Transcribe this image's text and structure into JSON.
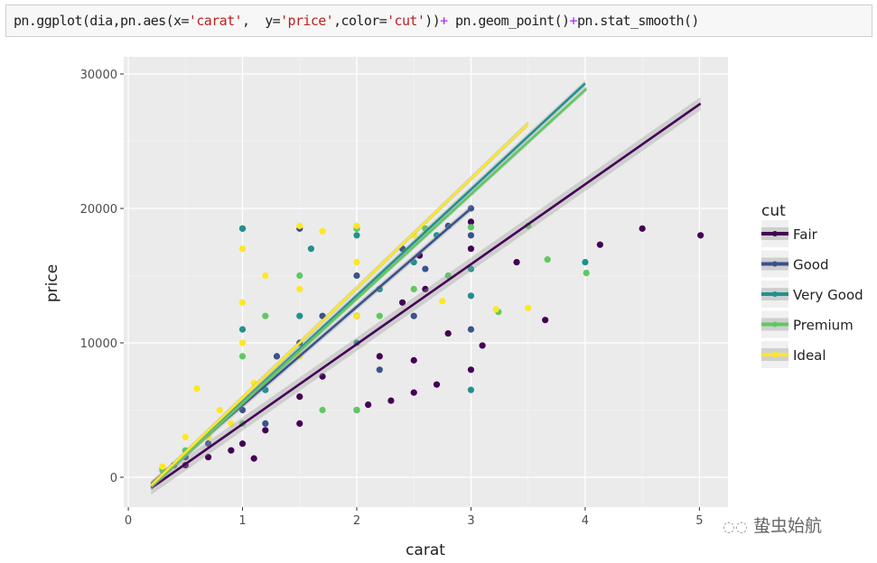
{
  "code_cell": {
    "parts": [
      "pn.ggplot(dia,pn.aes(x=",
      "'carat'",
      ",  y=",
      "'price'",
      ",color=",
      "'cut'",
      "))",
      "+",
      " pn.geom_point()",
      "+",
      "pn.stat_smooth()"
    ]
  },
  "watermark": "蛰虫始航",
  "colors": {
    "Fair": "#440154",
    "Good": "#3b528b",
    "Very Good": "#21918c",
    "Premium": "#5ec962",
    "Ideal": "#fde725",
    "panel": "#ebebeb",
    "grid": "#ffffff"
  },
  "chart_data": {
    "type": "scatter",
    "title": "",
    "xlabel": "carat",
    "ylabel": "price",
    "xlim": [
      -0.04,
      5.25
    ],
    "ylim": [
      -2215,
      31275
    ],
    "xticks": [
      0,
      1,
      2,
      3,
      4,
      5
    ],
    "xtick_labels": [
      "0",
      "1",
      "2",
      "3",
      "4",
      "5"
    ],
    "yticks": [
      0,
      10000,
      20000,
      30000
    ],
    "ytick_labels": [
      "0",
      "10000",
      "20000",
      "30000"
    ],
    "grid": true,
    "legend": {
      "title": "cut",
      "position": "right",
      "entries": [
        "Fair",
        "Good",
        "Very Good",
        "Premium",
        "Ideal"
      ]
    },
    "series": [
      {
        "name": "Fair",
        "points": [
          [
            0.5,
            900
          ],
          [
            0.7,
            1500
          ],
          [
            0.9,
            2000
          ],
          [
            1.0,
            2500
          ],
          [
            1.2,
            3500
          ],
          [
            1.5,
            4000
          ],
          [
            1.7,
            7500
          ],
          [
            2.0,
            5000
          ],
          [
            2.0,
            12000
          ],
          [
            2.2,
            9000
          ],
          [
            2.3,
            5700
          ],
          [
            2.5,
            6300
          ],
          [
            2.5,
            8700
          ],
          [
            2.6,
            14000
          ],
          [
            2.7,
            6900
          ],
          [
            2.8,
            10700
          ],
          [
            3.0,
            8000
          ],
          [
            3.0,
            17000
          ],
          [
            3.0,
            19000
          ],
          [
            3.1,
            9800
          ],
          [
            3.4,
            16000
          ],
          [
            3.65,
            11700
          ],
          [
            4.13,
            17300
          ],
          [
            4.5,
            18500
          ],
          [
            5.01,
            18000
          ],
          [
            1.1,
            1400
          ],
          [
            1.5,
            6000
          ],
          [
            2.1,
            5400
          ],
          [
            2.4,
            13000
          ],
          [
            2.55,
            16500
          ]
        ],
        "smooth": {
          "x": [
            0.2,
            5.01
          ],
          "y": [
            -800,
            27800
          ],
          "se": 500
        }
      },
      {
        "name": "Good",
        "points": [
          [
            0.4,
            900
          ],
          [
            0.5,
            1500
          ],
          [
            0.7,
            2500
          ],
          [
            1.0,
            5000
          ],
          [
            1.0,
            18500
          ],
          [
            1.2,
            4000
          ],
          [
            1.5,
            10000
          ],
          [
            1.5,
            18500
          ],
          [
            2.0,
            15000
          ],
          [
            2.0,
            18500
          ],
          [
            2.2,
            8000
          ],
          [
            2.4,
            17000
          ],
          [
            2.5,
            12000
          ],
          [
            2.8,
            18700
          ],
          [
            3.0,
            11000
          ],
          [
            3.0,
            18000
          ],
          [
            3.0,
            20000
          ],
          [
            1.3,
            9000
          ],
          [
            1.7,
            12000
          ],
          [
            2.6,
            15500
          ]
        ],
        "smooth": {
          "x": [
            0.2,
            3.0
          ],
          "y": [
            -500,
            20000
          ],
          "se": 250
        }
      },
      {
        "name": "Very Good",
        "points": [
          [
            0.3,
            600
          ],
          [
            0.7,
            3000
          ],
          [
            1.0,
            11000
          ],
          [
            1.0,
            18500
          ],
          [
            1.2,
            6500
          ],
          [
            1.5,
            12000
          ],
          [
            2.0,
            10000
          ],
          [
            2.0,
            18000
          ],
          [
            2.5,
            16000
          ],
          [
            2.7,
            18000
          ],
          [
            3.0,
            6500
          ],
          [
            3.0,
            13500
          ],
          [
            3.0,
            15500
          ],
          [
            4.0,
            16000
          ],
          [
            1.6,
            17000
          ],
          [
            2.2,
            14000
          ]
        ],
        "smooth": {
          "x": [
            0.2,
            4.0
          ],
          "y": [
            -700,
            29300
          ],
          "se": 250
        }
      },
      {
        "name": "Premium",
        "points": [
          [
            0.3,
            500
          ],
          [
            0.5,
            2000
          ],
          [
            1.0,
            4000
          ],
          [
            1.0,
            9000
          ],
          [
            1.5,
            15000
          ],
          [
            1.7,
            5000
          ],
          [
            2.0,
            5000
          ],
          [
            2.0,
            18500
          ],
          [
            2.2,
            12000
          ],
          [
            2.5,
            14000
          ],
          [
            2.8,
            15000
          ],
          [
            3.0,
            18600
          ],
          [
            3.24,
            12300
          ],
          [
            3.5,
            18700
          ],
          [
            3.67,
            16200
          ],
          [
            4.01,
            15200
          ],
          [
            1.2,
            12000
          ],
          [
            2.6,
            18500
          ]
        ],
        "smooth": {
          "x": [
            0.2,
            4.01
          ],
          "y": [
            -700,
            28900
          ],
          "se": 200
        }
      },
      {
        "name": "Ideal",
        "points": [
          [
            0.3,
            800
          ],
          [
            0.5,
            3000
          ],
          [
            0.6,
            6600
          ],
          [
            0.7,
            3000
          ],
          [
            0.8,
            5000
          ],
          [
            1.0,
            10000
          ],
          [
            1.0,
            17000
          ],
          [
            1.2,
            15000
          ],
          [
            1.5,
            14000
          ],
          [
            1.5,
            18700
          ],
          [
            2.0,
            16000
          ],
          [
            2.0,
            18700
          ],
          [
            2.5,
            18000
          ],
          [
            2.75,
            13100
          ],
          [
            3.22,
            12500
          ],
          [
            3.5,
            12600
          ],
          [
            1.0,
            13000
          ],
          [
            1.5,
            9000
          ],
          [
            2.0,
            12000
          ],
          [
            1.1,
            7000
          ],
          [
            0.9,
            4000
          ],
          [
            1.7,
            18300
          ]
        ],
        "smooth": {
          "x": [
            0.2,
            3.5
          ],
          "y": [
            -600,
            26300
          ],
          "se": 200
        }
      }
    ]
  }
}
